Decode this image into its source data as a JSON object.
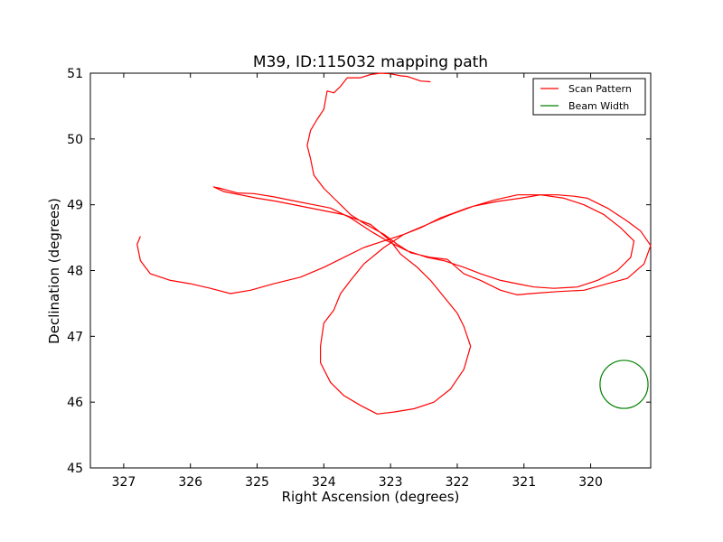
{
  "chart_data": {
    "type": "line",
    "title": "M39, ID:115032 mapping path",
    "xlabel": "Right Ascension (degrees)",
    "ylabel": "Declination (degrees)",
    "xlim": [
      327.5,
      319.1
    ],
    "ylim": [
      45,
      51
    ],
    "x_inverted": true,
    "xticks": [
      327,
      326,
      325,
      324,
      323,
      322,
      321,
      320
    ],
    "yticks": [
      45,
      46,
      47,
      48,
      49,
      50,
      51
    ],
    "grid": false,
    "legend_position": "top-right",
    "colors": {
      "scan": "#ff0000",
      "beam": "#008000"
    },
    "series": [
      {
        "name": "Scan Pattern",
        "points": [
          [
            322.4,
            50.87
          ],
          [
            322.55,
            50.88
          ],
          [
            322.75,
            50.95
          ],
          [
            322.85,
            50.96
          ],
          [
            323.0,
            50.99
          ],
          [
            323.15,
            51.0
          ],
          [
            323.3,
            50.98
          ],
          [
            323.45,
            50.93
          ],
          [
            323.65,
            50.93
          ],
          [
            323.75,
            50.8
          ],
          [
            323.85,
            50.7
          ],
          [
            323.95,
            50.73
          ],
          [
            324.0,
            50.45
          ],
          [
            324.1,
            50.3
          ],
          [
            324.2,
            50.13
          ],
          [
            324.25,
            49.9
          ],
          [
            324.2,
            49.7
          ],
          [
            324.15,
            49.45
          ],
          [
            324.0,
            49.25
          ],
          [
            323.8,
            49.05
          ],
          [
            323.6,
            48.85
          ],
          [
            323.4,
            48.72
          ],
          [
            323.1,
            48.55
          ],
          [
            322.9,
            48.4
          ],
          [
            322.7,
            48.27
          ],
          [
            322.4,
            48.2
          ],
          [
            322.15,
            48.17
          ],
          [
            321.9,
            47.95
          ],
          [
            321.65,
            47.85
          ],
          [
            321.35,
            47.7
          ],
          [
            321.1,
            47.63
          ],
          [
            320.9,
            47.65
          ],
          [
            320.5,
            47.68
          ],
          [
            320.1,
            47.7
          ],
          [
            319.75,
            47.8
          ],
          [
            319.45,
            47.88
          ],
          [
            319.2,
            48.1
          ],
          [
            319.1,
            48.38
          ],
          [
            319.25,
            48.6
          ],
          [
            319.45,
            48.75
          ],
          [
            319.75,
            48.95
          ],
          [
            320.05,
            49.1
          ],
          [
            320.25,
            49.13
          ],
          [
            320.5,
            49.15
          ],
          [
            320.8,
            49.15
          ],
          [
            321.1,
            49.15
          ],
          [
            321.45,
            49.07
          ],
          [
            321.85,
            48.95
          ],
          [
            322.25,
            48.8
          ],
          [
            322.55,
            48.65
          ],
          [
            322.8,
            48.55
          ],
          [
            323.1,
            48.35
          ],
          [
            323.4,
            48.1
          ],
          [
            323.6,
            47.85
          ],
          [
            323.75,
            47.65
          ],
          [
            323.85,
            47.4
          ],
          [
            324.0,
            47.2
          ],
          [
            324.05,
            46.85
          ],
          [
            324.05,
            46.6
          ],
          [
            323.9,
            46.3
          ],
          [
            323.7,
            46.1
          ],
          [
            323.45,
            45.95
          ],
          [
            323.2,
            45.82
          ],
          [
            322.95,
            45.85
          ],
          [
            322.65,
            45.9
          ],
          [
            322.35,
            46.0
          ],
          [
            322.1,
            46.2
          ],
          [
            321.9,
            46.5
          ],
          [
            321.8,
            46.85
          ],
          [
            321.9,
            47.15
          ],
          [
            322.0,
            47.35
          ],
          [
            322.2,
            47.6
          ],
          [
            322.4,
            47.85
          ],
          [
            322.6,
            48.05
          ],
          [
            322.85,
            48.25
          ],
          [
            323.0,
            48.45
          ],
          [
            323.3,
            48.7
          ],
          [
            323.7,
            48.85
          ],
          [
            324.05,
            48.92
          ],
          [
            324.35,
            48.98
          ],
          [
            324.7,
            49.05
          ],
          [
            325.0,
            49.1
          ],
          [
            325.25,
            49.15
          ],
          [
            325.5,
            49.2
          ],
          [
            325.65,
            49.27
          ],
          [
            325.55,
            49.25
          ],
          [
            325.3,
            49.18
          ],
          [
            325.05,
            49.17
          ],
          [
            324.75,
            49.12
          ],
          [
            324.5,
            49.07
          ],
          [
            324.15,
            49.0
          ],
          [
            323.9,
            48.95
          ],
          [
            323.6,
            48.8
          ],
          [
            323.3,
            48.6
          ],
          [
            323.05,
            48.45
          ],
          [
            322.75,
            48.3
          ],
          [
            322.45,
            48.2
          ],
          [
            322.2,
            48.15
          ],
          [
            321.9,
            48.05
          ],
          [
            321.65,
            47.95
          ],
          [
            321.35,
            47.85
          ],
          [
            321.1,
            47.8
          ],
          [
            320.85,
            47.75
          ],
          [
            320.55,
            47.73
          ],
          [
            320.2,
            47.75
          ],
          [
            319.9,
            47.85
          ],
          [
            319.6,
            48.0
          ],
          [
            319.4,
            48.2
          ],
          [
            319.35,
            48.45
          ],
          [
            319.55,
            48.65
          ],
          [
            319.8,
            48.85
          ],
          [
            320.1,
            49.0
          ],
          [
            320.4,
            49.1
          ],
          [
            320.75,
            49.15
          ],
          [
            321.05,
            49.1
          ],
          [
            321.4,
            49.05
          ],
          [
            321.75,
            48.98
          ],
          [
            322.1,
            48.85
          ],
          [
            322.45,
            48.7
          ],
          [
            322.8,
            48.55
          ],
          [
            323.1,
            48.45
          ],
          [
            323.4,
            48.35
          ],
          [
            323.7,
            48.2
          ],
          [
            324.0,
            48.05
          ],
          [
            324.35,
            47.9
          ],
          [
            324.75,
            47.8
          ],
          [
            325.1,
            47.7
          ],
          [
            325.4,
            47.65
          ],
          [
            325.7,
            47.73
          ],
          [
            326.0,
            47.8
          ],
          [
            326.3,
            47.85
          ],
          [
            326.6,
            47.95
          ],
          [
            326.75,
            48.15
          ],
          [
            326.8,
            48.4
          ],
          [
            326.75,
            48.52
          ]
        ]
      },
      {
        "name": "Beam Width",
        "center": [
          319.5,
          46.27
        ],
        "radius_deg": 0.36
      }
    ]
  }
}
